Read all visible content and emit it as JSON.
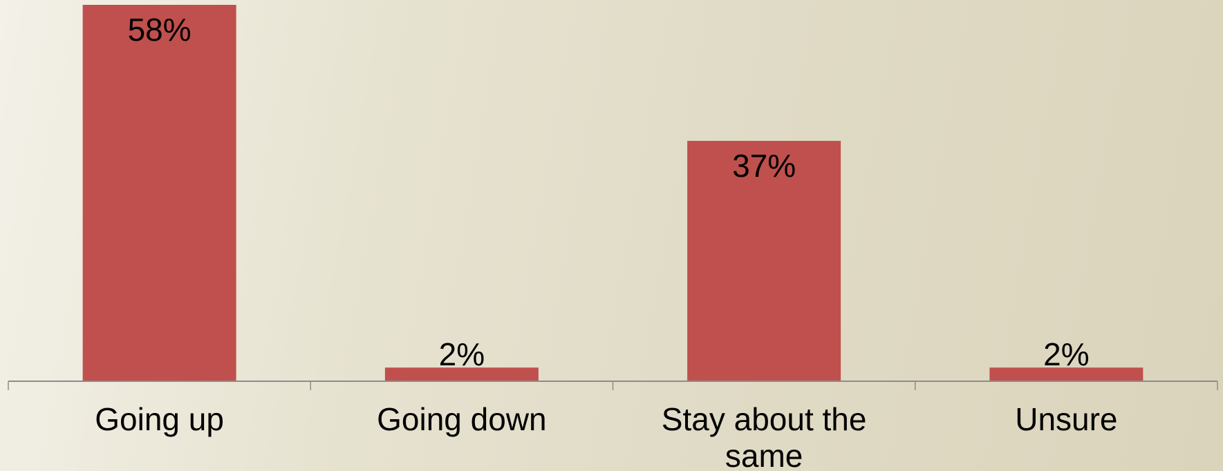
{
  "colors": {
    "bar": "#c0504d",
    "axis": "#8c8c8c"
  },
  "chart_data": {
    "type": "bar",
    "categories": [
      "Going up",
      "Going down",
      "Stay about the same",
      "Unsure"
    ],
    "category_lines": [
      [
        "Going up"
      ],
      [
        "Going down"
      ],
      [
        "Stay about the",
        "same"
      ],
      [
        "Unsure"
      ]
    ],
    "values": [
      58,
      2,
      37,
      2
    ],
    "value_labels": [
      "58%",
      "2%",
      "37%",
      "2%"
    ],
    "unit": "%",
    "ylim": [
      0,
      58
    ],
    "grid": false,
    "legend": "none"
  }
}
